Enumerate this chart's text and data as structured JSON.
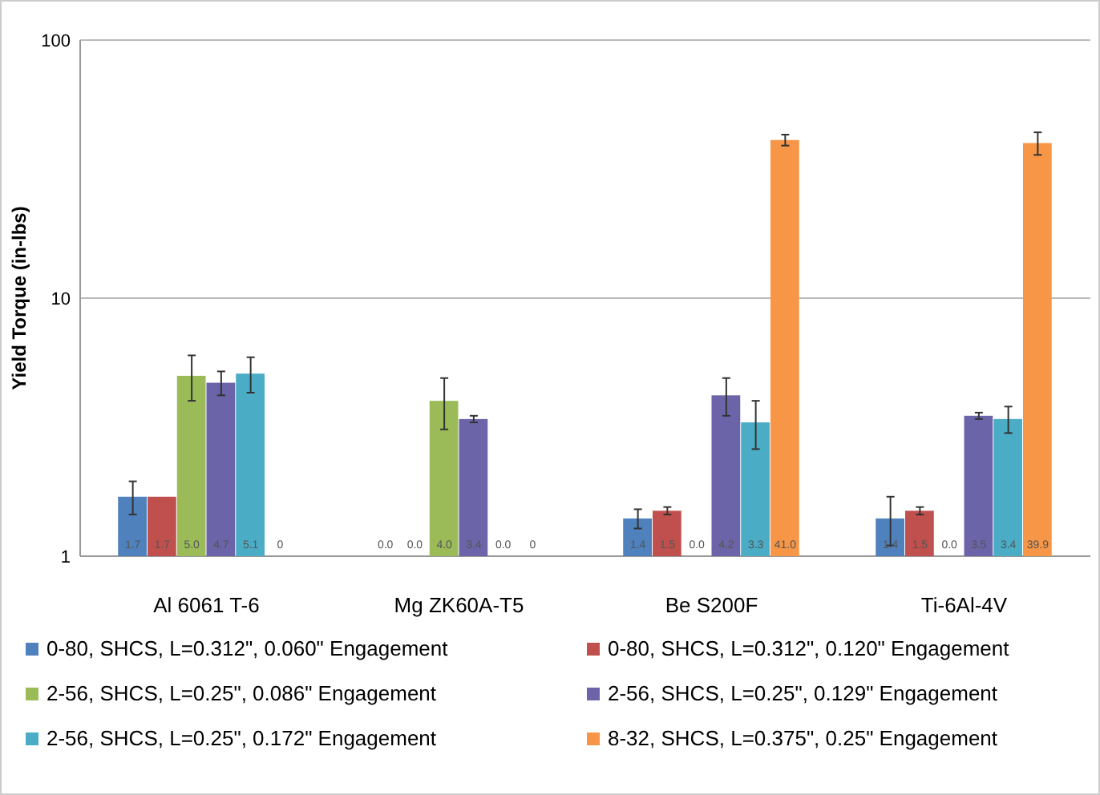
{
  "chart_data": {
    "type": "bar",
    "ylabel": "Yield Torque (in-lbs)",
    "categories": [
      "Al 6061 T-6",
      "Mg ZK60A-T5",
      "Be S200F",
      "Ti-6Al-4V"
    ],
    "log": true,
    "ylim": [
      1,
      100
    ],
    "yticks": [
      1,
      10,
      100
    ],
    "grid": "y",
    "legend": "bottom",
    "series": [
      {
        "name": "0-80, SHCS, L=0.312\", 0.060\" Engagement",
        "color": "#4f81bd",
        "values": [
          1.7,
          null,
          1.4,
          1.4
        ],
        "errors": [
          0.25,
          null,
          0.12,
          0.3
        ],
        "value_labels": [
          "1.7",
          "0.0",
          "1.4",
          "1.4"
        ]
      },
      {
        "name": "0-80, SHCS, L=0.312\", 0.120\" Engagement",
        "color": "#c0504d",
        "values": [
          1.7,
          null,
          1.5,
          1.5
        ],
        "errors": [
          null,
          null,
          0.05,
          0.05
        ],
        "value_labels": [
          "1.7",
          "0.0",
          "1.5",
          "1.5"
        ]
      },
      {
        "name": "2-56, SHCS, L=0.25\", 0.086\" Engagement",
        "color": "#9bbb59",
        "values": [
          5.0,
          4.0,
          null,
          null
        ],
        "errors": [
          1.0,
          0.9,
          null,
          null
        ],
        "value_labels": [
          "5.0",
          "4.0",
          "0.0",
          "0.0"
        ]
      },
      {
        "name": "2-56, SHCS, L=0.25\", 0.129\" Engagement",
        "color": "#6b64a8",
        "values": [
          4.7,
          3.4,
          4.2,
          3.5
        ],
        "errors": [
          0.5,
          0.1,
          0.7,
          0.1
        ],
        "value_labels": [
          "4.7",
          "3.4",
          "4.2",
          "3.5"
        ]
      },
      {
        "name": "2-56, SHCS, L=0.25\", 0.172\" Engagement",
        "color": "#4bacc6",
        "values": [
          5.1,
          null,
          3.3,
          3.4
        ],
        "errors": [
          0.8,
          null,
          0.7,
          0.4
        ],
        "value_labels": [
          "5.1",
          "0.0",
          "3.3",
          "3.4"
        ]
      },
      {
        "name": "8-32, SHCS, L=0.375\", 0.25\" Engagement",
        "color": "#f79646",
        "values": [
          null,
          null,
          41.0,
          39.9
        ],
        "errors": [
          null,
          null,
          2,
          4
        ],
        "value_labels": [
          "0",
          "0",
          "41.0",
          "39.9"
        ]
      }
    ]
  }
}
